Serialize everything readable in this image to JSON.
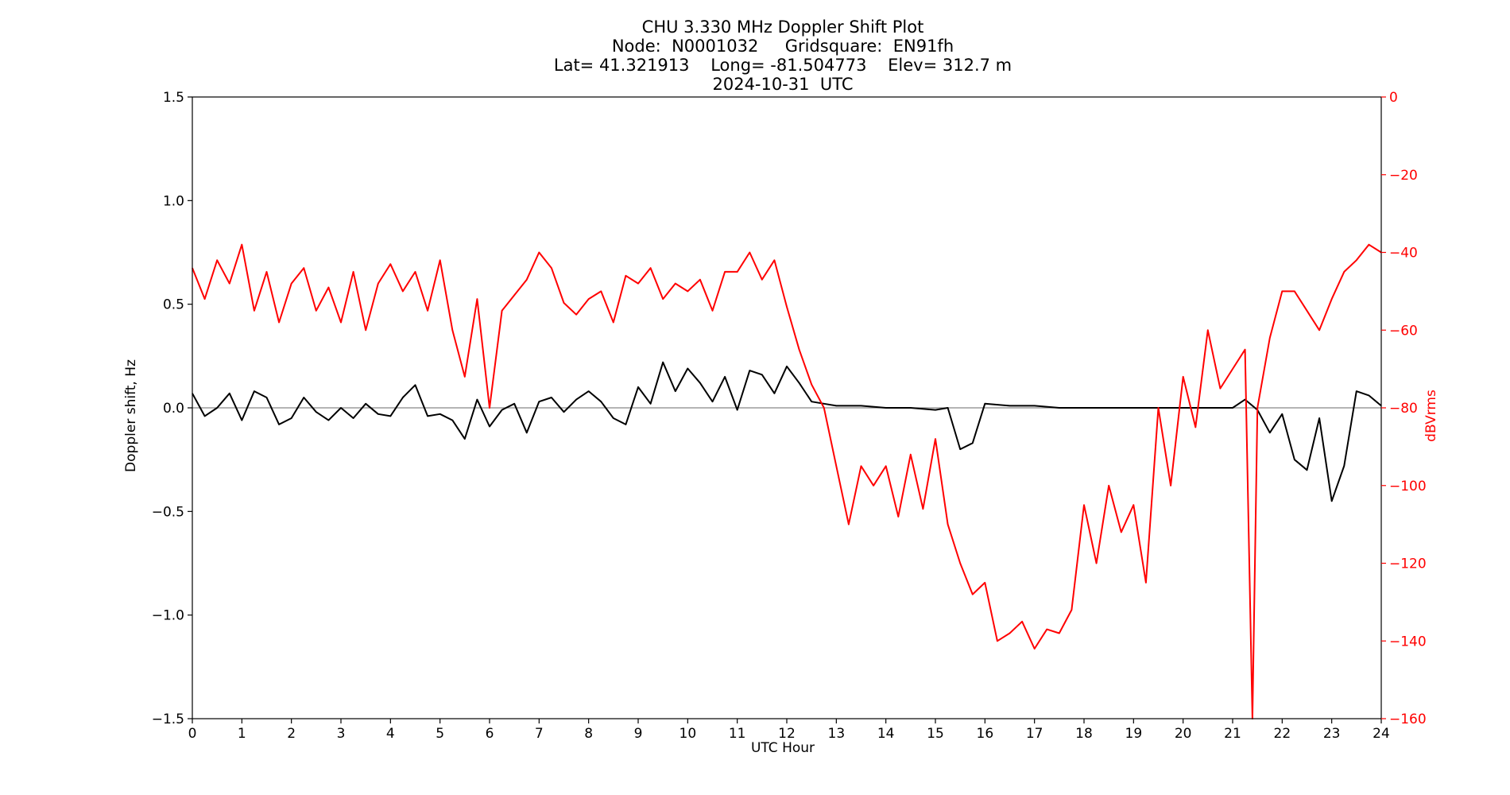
{
  "chart_data": {
    "type": "line",
    "title_lines": [
      "CHU 3.330 MHz Doppler Shift Plot",
      "Node:  N0001032     Gridsquare:  EN91fh",
      "Lat= 41.321913    Long= -81.504773    Elev= 312.7 m",
      "2024-10-31  UTC"
    ],
    "xlabel": "UTC Hour",
    "ylabel_left": "Doppler shift, Hz",
    "ylabel_right": "dBVrms",
    "xlim": [
      0,
      24
    ],
    "ylim_left": [
      -1.5,
      1.5
    ],
    "ylim_right": [
      -160,
      0
    ],
    "x_ticks": [
      "0",
      "1",
      "2",
      "3",
      "4",
      "5",
      "6",
      "7",
      "8",
      "9",
      "10",
      "11",
      "12",
      "13",
      "14",
      "15",
      "16",
      "17",
      "18",
      "19",
      "20",
      "21",
      "22",
      "23",
      "24"
    ],
    "y_ticks_left": [
      "1.5",
      "1.0",
      "0.5",
      "0.0",
      "−0.5",
      "−1.0",
      "−1.5"
    ],
    "y_ticks_right": [
      "0",
      "−20",
      "−40",
      "−60",
      "−80",
      "−100",
      "−120",
      "−140",
      "−160"
    ],
    "colors": {
      "doppler": "#000000",
      "power": "#ff0000",
      "zero_line": "#888888"
    },
    "series": [
      {
        "axis": "left",
        "x": [
          0,
          0.25,
          0.5,
          0.75,
          1,
          1.25,
          1.5,
          1.75,
          2,
          2.25,
          2.5,
          2.75,
          3,
          3.25,
          3.5,
          3.75,
          4,
          4.25,
          4.5,
          4.75,
          5,
          5.25,
          5.5,
          5.75,
          6,
          6.25,
          6.5,
          6.75,
          7,
          7.25,
          7.5,
          7.75,
          8,
          8.25,
          8.5,
          8.75,
          9,
          9.25,
          9.5,
          9.75,
          10,
          10.25,
          10.5,
          10.75,
          11,
          11.25,
          11.5,
          11.75,
          12,
          12.25,
          12.5,
          12.75,
          13,
          13.5,
          14,
          14.5,
          15,
          15.25,
          15.5,
          15.75,
          16,
          16.5,
          17,
          17.5,
          18,
          18.5,
          19,
          19.5,
          20,
          20.5,
          21,
          21.25,
          21.5,
          21.75,
          22,
          22.25,
          22.5,
          22.75,
          23,
          23.25,
          23.5,
          23.75,
          24
        ],
        "values": [
          0.07,
          -0.04,
          0.0,
          0.07,
          -0.06,
          0.08,
          0.05,
          -0.08,
          -0.05,
          0.05,
          -0.02,
          -0.06,
          0.0,
          -0.05,
          0.02,
          -0.03,
          -0.04,
          0.05,
          0.11,
          -0.04,
          -0.03,
          -0.06,
          -0.15,
          0.04,
          -0.09,
          -0.01,
          0.02,
          -0.12,
          0.03,
          0.05,
          -0.02,
          0.04,
          0.08,
          0.03,
          -0.05,
          -0.08,
          0.1,
          0.02,
          0.22,
          0.08,
          0.19,
          0.12,
          0.03,
          0.15,
          -0.01,
          0.18,
          0.16,
          0.07,
          0.2,
          0.12,
          0.03,
          0.02,
          0.01,
          0.01,
          0.0,
          0.0,
          -0.01,
          0.0,
          -0.2,
          -0.17,
          0.02,
          0.01,
          0.01,
          0.0,
          0.0,
          0.0,
          0.0,
          0.0,
          0.0,
          0.0,
          0.0,
          0.04,
          -0.01,
          -0.12,
          -0.03,
          -0.25,
          -0.3,
          -0.05,
          -0.45,
          -0.28,
          0.08,
          0.06,
          0.01
        ]
      },
      {
        "axis": "right",
        "x": [
          0,
          0.25,
          0.5,
          0.75,
          1,
          1.25,
          1.5,
          1.75,
          2,
          2.25,
          2.5,
          2.75,
          3,
          3.25,
          3.5,
          3.75,
          4,
          4.25,
          4.5,
          4.75,
          5,
          5.25,
          5.5,
          5.75,
          6,
          6.25,
          6.5,
          6.75,
          7,
          7.25,
          7.5,
          7.75,
          8,
          8.25,
          8.5,
          8.75,
          9,
          9.25,
          9.5,
          9.75,
          10,
          10.25,
          10.5,
          10.75,
          11,
          11.25,
          11.5,
          11.75,
          12,
          12.25,
          12.5,
          12.75,
          13,
          13.25,
          13.5,
          13.75,
          14,
          14.25,
          14.5,
          14.75,
          15,
          15.25,
          15.5,
          15.75,
          16,
          16.25,
          16.5,
          16.75,
          17,
          17.25,
          17.5,
          17.75,
          18,
          18.25,
          18.5,
          18.75,
          19,
          19.25,
          19.5,
          19.75,
          20,
          20.25,
          20.5,
          20.75,
          21,
          21.25,
          21.4,
          21.5,
          21.75,
          22,
          22.25,
          22.5,
          22.75,
          23,
          23.25,
          23.5,
          23.75,
          24
        ],
        "values": [
          -44,
          -52,
          -42,
          -48,
          -38,
          -55,
          -45,
          -58,
          -48,
          -44,
          -55,
          -49,
          -58,
          -45,
          -60,
          -48,
          -43,
          -50,
          -45,
          -55,
          -42,
          -60,
          -72,
          -52,
          -80,
          -55,
          -51,
          -47,
          -40,
          -44,
          -53,
          -56,
          -52,
          -50,
          -58,
          -46,
          -48,
          -44,
          -52,
          -48,
          -50,
          -47,
          -55,
          -45,
          -45,
          -40,
          -47,
          -42,
          -54,
          -65,
          -74,
          -80,
          -95,
          -110,
          -95,
          -100,
          -95,
          -108,
          -92,
          -106,
          -88,
          -110,
          -120,
          -128,
          -125,
          -140,
          -138,
          -135,
          -142,
          -137,
          -138,
          -132,
          -105,
          -120,
          -100,
          -112,
          -105,
          -125,
          -80,
          -100,
          -72,
          -85,
          -60,
          -75,
          -70,
          -65,
          -160,
          -80,
          -62,
          -50,
          -50,
          -55,
          -60,
          -52,
          -45,
          -42,
          -38,
          -40
        ]
      }
    ]
  }
}
